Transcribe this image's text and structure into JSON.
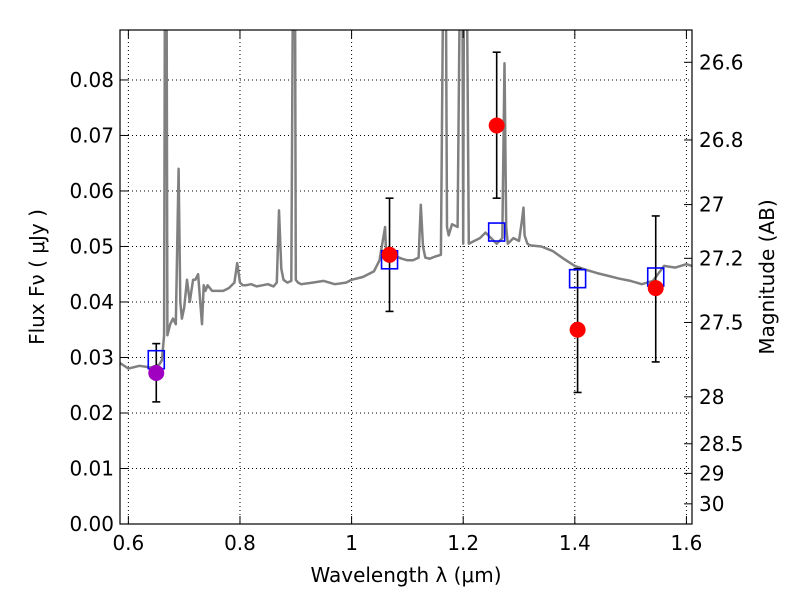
{
  "chart_data": {
    "type": "scatter",
    "title": "",
    "xlabel": "Wavelength  λ (μm)",
    "ylabel": "Flux  Fν  ( μJy )",
    "y2label": "Magnitude (AB)",
    "xlim": [
      0.585,
      1.61
    ],
    "ylim": [
      0.0,
      0.089
    ],
    "grid": true,
    "x_ticks": [
      0.6,
      0.8,
      1.0,
      1.2,
      1.4,
      1.6
    ],
    "x_tick_labels": [
      "0.6",
      "0.8",
      "1",
      "1.2",
      "1.4",
      "1.6"
    ],
    "y_ticks": [
      0.0,
      0.01,
      0.02,
      0.03,
      0.04,
      0.05,
      0.06,
      0.07,
      0.08
    ],
    "y_tick_labels": [
      "0.00",
      "0.01",
      "0.02",
      "0.03",
      "0.04",
      "0.05",
      "0.06",
      "0.07",
      "0.08"
    ],
    "y2_ticks": [
      26.6,
      26.8,
      27.0,
      27.2,
      27.5,
      28.0,
      28.5,
      29.0,
      30.0
    ],
    "y2_tick_labels": [
      "26.6",
      "26.8",
      "27",
      "27.2",
      "27.5",
      "28",
      "28.5",
      "29",
      "30"
    ],
    "colors": {
      "spectrum": "#808080",
      "model": "#0000ff",
      "observed": "#ff0000",
      "observed_first": "#a000c0",
      "errorbar": "#000000"
    },
    "spectrum": {
      "x": [
        0.585,
        0.6,
        0.62,
        0.64,
        0.655,
        0.66,
        0.664,
        0.666,
        0.668,
        0.67,
        0.675,
        0.68,
        0.685,
        0.69,
        0.693,
        0.696,
        0.7,
        0.705,
        0.71,
        0.713,
        0.716,
        0.72,
        0.725,
        0.728,
        0.732,
        0.735,
        0.738,
        0.742,
        0.75,
        0.76,
        0.77,
        0.78,
        0.79,
        0.795,
        0.8,
        0.805,
        0.81,
        0.82,
        0.83,
        0.84,
        0.85,
        0.86,
        0.866,
        0.87,
        0.874,
        0.878,
        0.885,
        0.892,
        0.896,
        0.898,
        0.9,
        0.904,
        0.91,
        0.93,
        0.95,
        0.97,
        0.99,
        1.0,
        1.02,
        1.04,
        1.05,
        1.06,
        1.062,
        1.065,
        1.07,
        1.08,
        1.09,
        1.1,
        1.11,
        1.12,
        1.124,
        1.128,
        1.132,
        1.14,
        1.15,
        1.16,
        1.166,
        1.168,
        1.171,
        1.174,
        1.18,
        1.19,
        1.196,
        1.198,
        1.2,
        1.202,
        1.205,
        1.21,
        1.22,
        1.23,
        1.24,
        1.25,
        1.26,
        1.27,
        1.274,
        1.277,
        1.28,
        1.29,
        1.3,
        1.305,
        1.308,
        1.31,
        1.315,
        1.32,
        1.34,
        1.36,
        1.38,
        1.4,
        1.42,
        1.44,
        1.46,
        1.48,
        1.5,
        1.52,
        1.54,
        1.56,
        1.58,
        1.6,
        1.61
      ],
      "y": [
        0.029,
        0.028,
        0.0285,
        0.0282,
        0.0287,
        0.0295,
        0.034,
        0.12,
        0.12,
        0.034,
        0.036,
        0.037,
        0.036,
        0.064,
        0.04,
        0.037,
        0.039,
        0.044,
        0.04,
        0.042,
        0.044,
        0.044,
        0.045,
        0.041,
        0.036,
        0.043,
        0.042,
        0.043,
        0.042,
        0.042,
        0.042,
        0.0425,
        0.0435,
        0.047,
        0.0435,
        0.043,
        0.043,
        0.0432,
        0.0428,
        0.043,
        0.0432,
        0.0428,
        0.0435,
        0.0565,
        0.046,
        0.044,
        0.0435,
        0.0438,
        0.12,
        0.12,
        0.044,
        0.0435,
        0.0432,
        0.0435,
        0.0438,
        0.0432,
        0.0435,
        0.044,
        0.0445,
        0.0455,
        0.0475,
        0.0535,
        0.048,
        0.0475,
        0.0478,
        0.0482,
        0.0478,
        0.0475,
        0.0475,
        0.048,
        0.0575,
        0.05,
        0.048,
        0.0478,
        0.0482,
        0.0485,
        0.12,
        0.12,
        0.0535,
        0.052,
        0.054,
        0.0535,
        0.12,
        0.12,
        0.0505,
        0.12,
        0.12,
        0.0505,
        0.051,
        0.0515,
        0.0525,
        0.0515,
        0.0505,
        0.0515,
        0.083,
        0.0535,
        0.0505,
        0.0515,
        0.051,
        0.0545,
        0.057,
        0.052,
        0.0505,
        0.0502,
        0.05,
        0.0492,
        0.0478,
        0.0465,
        0.0458,
        0.0452,
        0.0447,
        0.0442,
        0.0438,
        0.0432,
        0.0438,
        0.0465,
        0.0462,
        0.0468,
        0.0465
      ]
    },
    "model_points": {
      "x": [
        0.65,
        1.068,
        1.26,
        1.405,
        1.545
      ],
      "y": [
        0.0296,
        0.0476,
        0.0526,
        0.0442,
        0.0445
      ]
    },
    "observed_points": {
      "x": [
        0.65,
        1.068,
        1.26,
        1.405,
        1.545
      ],
      "y": [
        0.0272,
        0.0485,
        0.0718,
        0.035,
        0.0425
      ],
      "yerr_low": [
        0.022,
        0.0383,
        0.0587,
        0.0237,
        0.0292
      ],
      "yerr_high": [
        0.0325,
        0.0587,
        0.085,
        0.046,
        0.0555
      ]
    }
  }
}
